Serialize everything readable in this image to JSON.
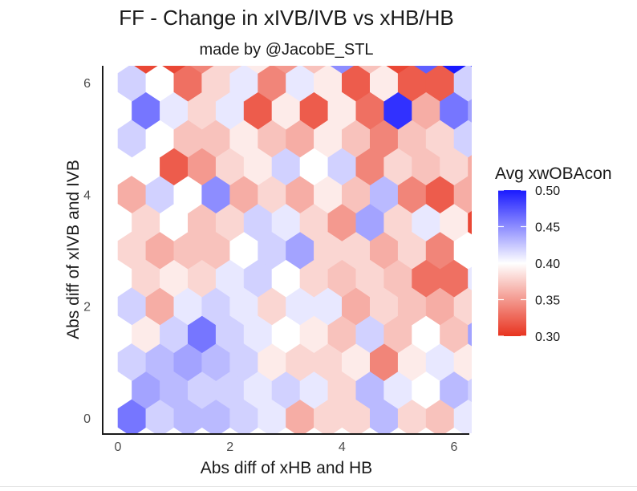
{
  "chart_data": {
    "type": "heatmap",
    "subtype": "hexbin",
    "title": "FF - Change in xIVB/IVB vs xHB/HB",
    "subtitle": "made by @JacobE_STL",
    "xlabel": "Abs diff of xHB and HB",
    "ylabel": "Abs diff of xIVB and IVB",
    "xlim": [
      -0.3,
      6.3
    ],
    "ylim": [
      -0.15,
      6.3
    ],
    "x_ticks": [
      "0",
      "2",
      "4",
      "6"
    ],
    "y_ticks": [
      "0",
      "2",
      "4",
      "6"
    ],
    "grid": false,
    "hex_step_x": 0.5,
    "hex_step_y": 0.5,
    "rows": [
      {
        "y": 0.5,
        "x0": 0.25,
        "values": [
          0.46,
          0.42,
          0.43,
          0.43,
          0.42,
          0.41,
          0.36,
          0.38,
          0.38,
          0.43,
          0.38,
          0.37,
          0.41,
          0.34
        ]
      },
      {
        "y": 1.0,
        "x0": 0.5,
        "values": [
          0.44,
          0.43,
          0.42,
          0.42,
          0.41,
          0.42,
          0.41,
          0.38,
          0.43,
          0.41,
          0.4,
          0.43,
          0.42,
          0.35
        ]
      },
      {
        "y": 1.5,
        "x0": 0.25,
        "values": [
          0.42,
          0.43,
          0.44,
          0.43,
          0.42,
          0.39,
          0.38,
          0.38,
          0.39,
          0.34,
          0.39,
          0.41,
          0.39,
          0.38,
          0.37
        ]
      },
      {
        "y": 2.0,
        "x0": 0.5,
        "values": [
          0.39,
          0.42,
          0.46,
          0.42,
          0.41,
          0.4,
          0.39,
          0.37,
          0.42,
          0.37,
          0.4,
          0.37,
          0.44,
          0.36
        ]
      },
      {
        "y": 2.5,
        "x0": 0.25,
        "values": [
          0.42,
          0.36,
          0.41,
          0.42,
          0.41,
          0.38,
          0.41,
          0.41,
          0.36,
          0.38,
          0.37,
          0.36,
          0.38,
          0.4,
          0.39
        ]
      },
      {
        "y": 3.0,
        "x0": 0.5,
        "values": [
          0.38,
          0.39,
          0.38,
          0.41,
          0.42,
          0.4,
          0.38,
          0.37,
          0.38,
          0.37,
          0.33,
          0.33,
          0.41,
          0.33
        ]
      },
      {
        "y": 3.5,
        "x0": 0.25,
        "values": [
          0.38,
          0.36,
          0.37,
          0.37,
          0.4,
          0.42,
          0.44,
          0.38,
          0.38,
          0.36,
          0.38,
          0.34,
          0.4,
          0.37,
          0.36
        ]
      },
      {
        "y": 4.0,
        "x0": 0.5,
        "values": [
          0.38,
          0.4,
          0.37,
          0.38,
          0.42,
          0.41,
          0.38,
          0.35,
          0.44,
          0.38,
          0.41,
          0.39,
          0.31,
          0.4
        ]
      },
      {
        "y": 4.5,
        "x0": 0.25,
        "values": [
          0.36,
          0.42,
          0.4,
          0.45,
          0.36,
          0.38,
          0.36,
          0.39,
          0.37,
          0.43,
          0.34,
          0.32,
          0.36,
          0.42,
          0.43
        ]
      },
      {
        "y": 5.0,
        "x0": 0.5,
        "values": [
          0.4,
          0.32,
          0.35,
          0.38,
          0.39,
          0.42,
          0.4,
          0.42,
          0.34,
          0.38,
          0.37,
          0.38,
          0.36,
          0.4
        ]
      },
      {
        "y": 5.5,
        "x0": 0.25,
        "values": [
          0.42,
          0.4,
          0.37,
          0.37,
          0.39,
          0.37,
          0.36,
          0.39,
          0.37,
          0.34,
          0.37,
          0.38,
          0.42,
          0.4,
          0.34
        ]
      },
      {
        "y": 6.0,
        "x0": 0.5,
        "values": [
          0.46,
          0.41,
          0.38,
          0.41,
          0.32,
          0.39,
          0.32,
          0.39,
          0.33,
          0.49,
          0.36,
          0.46,
          0.44,
          0.36
        ]
      },
      {
        "y": 6.5,
        "x0": 0.25,
        "values": [
          0.42,
          0.4,
          0.33,
          0.38,
          0.41,
          0.34,
          0.41,
          0.39,
          0.32,
          0.39,
          0.32,
          0.32,
          0.42,
          0.32,
          0.44
        ]
      },
      {
        "y": 7.0,
        "x0": 0.5,
        "values": [
          0.31,
          0.31,
          0.34,
          0.38,
          0.39,
          0.35,
          0.37,
          0.45,
          0.37,
          0.31,
          0.47,
          0.51,
          0.49
        ]
      }
    ],
    "legend": {
      "title": "Avg xwOBAcon",
      "position": "right",
      "ticks": [
        0.5,
        0.45,
        0.4,
        0.35,
        0.3
      ],
      "tick_labels": [
        "0.50",
        "0.45",
        "0.40",
        "0.35",
        "0.30"
      ],
      "min": 0.3,
      "max": 0.5,
      "low_color": "#e8331f",
      "mid_color": "#ffffff",
      "high_color": "#1a1aff",
      "midpoint": 0.4
    }
  }
}
